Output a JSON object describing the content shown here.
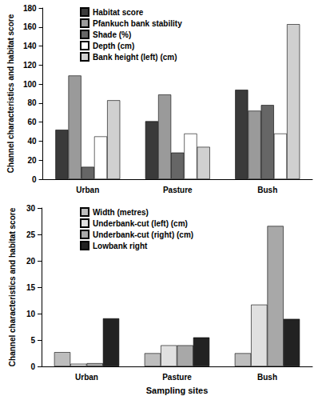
{
  "chart_data": [
    {
      "type": "bar",
      "categories": [
        "Urban",
        "Pasture",
        "Bush"
      ],
      "y_label": "Channel characteristics and habitat score",
      "ylim": [
        0,
        180
      ],
      "yticks": [
        0,
        20,
        40,
        60,
        80,
        100,
        120,
        140,
        160,
        180
      ],
      "grid": false,
      "legend": "upper left",
      "series": [
        {
          "name": "Habitat score",
          "color": "#3a3a3a",
          "values": [
            52,
            61,
            94
          ]
        },
        {
          "name": "Pfankuch bank stability",
          "color": "#9a9a9a",
          "values": [
            109,
            89,
            72
          ]
        },
        {
          "name": "Shade (%)",
          "color": "#666666",
          "values": [
            13,
            28,
            78
          ]
        },
        {
          "name": "Depth (cm)",
          "color": "#ffffff",
          "values": [
            45,
            48,
            48
          ]
        },
        {
          "name": "Bank height (left) (cm)",
          "color": "#d0d0d0",
          "values": [
            83,
            34,
            163
          ]
        }
      ]
    },
    {
      "type": "bar",
      "categories": [
        "Urban",
        "Pasture",
        "Bush"
      ],
      "x_label": "Sampling sites",
      "y_label": "Channel characteristics and habitat score",
      "ylim": [
        0,
        30
      ],
      "yticks": [
        0,
        5,
        10,
        15,
        20,
        25,
        30
      ],
      "grid": false,
      "legend": "upper left",
      "series": [
        {
          "name": "Width (metres)",
          "color": "#bdbdbd",
          "values": [
            2.7,
            2.5,
            2.5
          ]
        },
        {
          "name": "Underbank-cut (left) (cm)",
          "color": "#e0e0e0",
          "values": [
            0.5,
            4,
            11.7
          ]
        },
        {
          "name": "Underbank-cut (right) (cm)",
          "color": "#a8a8a8",
          "values": [
            0.6,
            4,
            26.6
          ]
        },
        {
          "name": "Lowbank right",
          "color": "#222222",
          "values": [
            9.1,
            5.5,
            9
          ]
        }
      ]
    }
  ]
}
